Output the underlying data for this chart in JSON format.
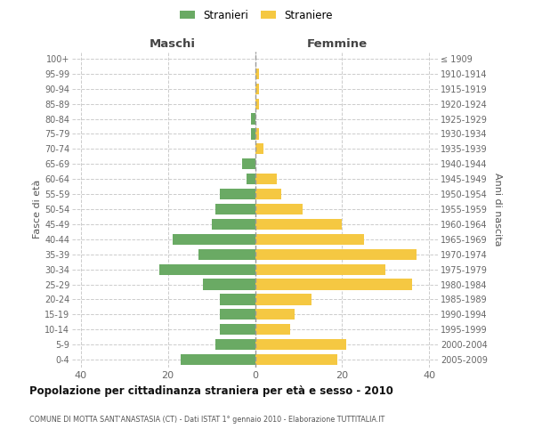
{
  "age_groups_bottom_to_top": [
    "0-4",
    "5-9",
    "10-14",
    "15-19",
    "20-24",
    "25-29",
    "30-34",
    "35-39",
    "40-44",
    "45-49",
    "50-54",
    "55-59",
    "60-64",
    "65-69",
    "70-74",
    "75-79",
    "80-84",
    "85-89",
    "90-94",
    "95-99",
    "100+"
  ],
  "birth_years_bottom_to_top": [
    "2005-2009",
    "2000-2004",
    "1995-1999",
    "1990-1994",
    "1985-1989",
    "1980-1984",
    "1975-1979",
    "1970-1974",
    "1965-1969",
    "1960-1964",
    "1955-1959",
    "1950-1954",
    "1945-1949",
    "1940-1944",
    "1935-1939",
    "1930-1934",
    "1925-1929",
    "1920-1924",
    "1915-1919",
    "1910-1914",
    "≤ 1909"
  ],
  "maschi_bottom_to_top": [
    17,
    9,
    8,
    8,
    8,
    12,
    22,
    13,
    19,
    10,
    9,
    8,
    2,
    3,
    0,
    1,
    1,
    0,
    0,
    0,
    0
  ],
  "femmine_bottom_to_top": [
    19,
    21,
    8,
    9,
    13,
    36,
    30,
    37,
    25,
    20,
    11,
    6,
    5,
    0,
    2,
    1,
    0,
    1,
    1,
    1,
    0
  ],
  "maschi_color": "#6aaa64",
  "femmine_color": "#f5c842",
  "bg_color": "#ffffff",
  "grid_color": "#cccccc",
  "title": "Popolazione per cittadinanza straniera per età e sesso - 2010",
  "subtitle": "COMUNE DI MOTTA SANT'ANASTASIA (CT) - Dati ISTAT 1° gennaio 2010 - Elaborazione TUTTITALIA.IT",
  "header_left": "Maschi",
  "header_right": "Femmine",
  "ylabel_left": "Fasce di età",
  "ylabel_right": "Anni di nascita",
  "xlim": 42,
  "legend_stranieri": "Stranieri",
  "legend_straniere": "Straniere"
}
